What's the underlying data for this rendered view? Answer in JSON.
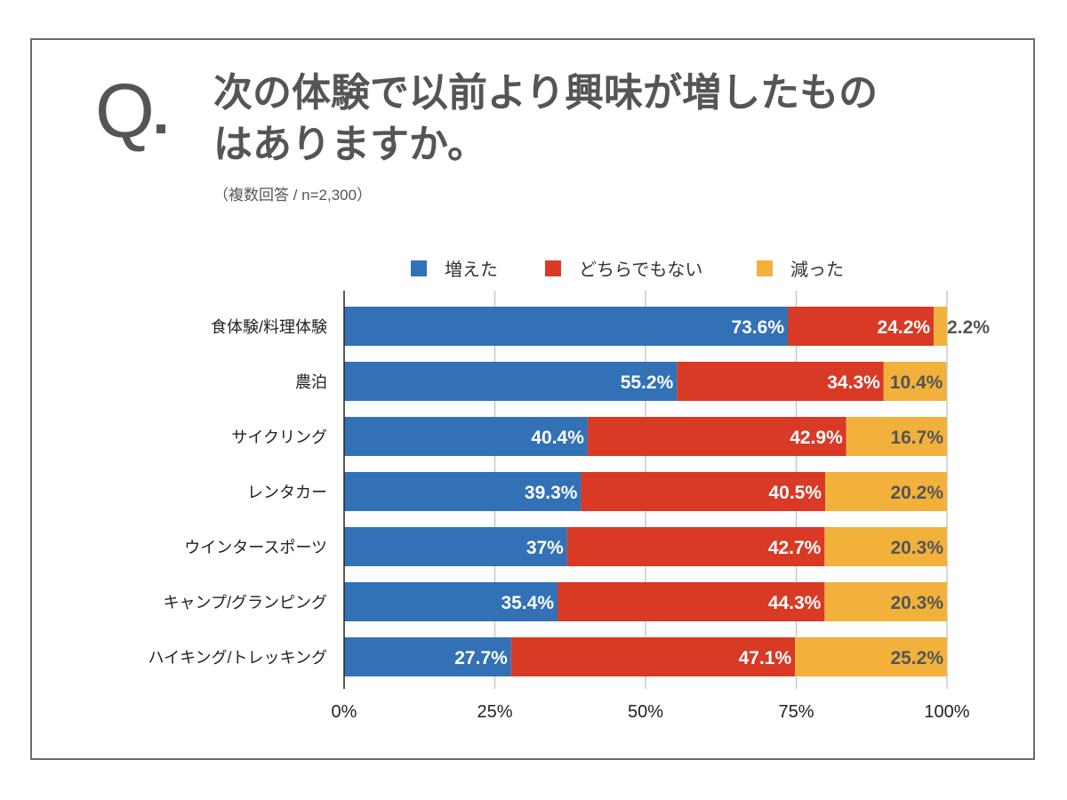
{
  "header": {
    "q_mark": "Q",
    "title": "次の体験で以前より興味が増したものはありますか。",
    "subtitle": "（複数回答 / n=2,300）"
  },
  "colors": {
    "increased": "#3271b6",
    "neutral": "#d83a25",
    "decreased": "#f2b13b",
    "label_light": "#ffffff",
    "label_dark": "#555555",
    "frame": "#6b6b6b"
  },
  "chart_data": {
    "type": "bar",
    "orientation": "horizontal",
    "stacked": true,
    "title": "次の体験で以前より興味が増したものはありますか。",
    "subtitle": "（複数回答 / n=2,300）",
    "categories": [
      "食体験/料理体験",
      "農泊",
      "サイクリング",
      "レンタカー",
      "ウインタースポーツ",
      "キャンプ/グランピング",
      "ハイキング/トレッキング"
    ],
    "series": [
      {
        "name": "増えた",
        "values": [
          73.6,
          55.2,
          40.4,
          39.3,
          37,
          35.4,
          27.7
        ],
        "labels": [
          "73.6%",
          "55.2%",
          "40.4%",
          "39.3%",
          "37%",
          "35.4%",
          "27.7%"
        ]
      },
      {
        "name": "どちらでもない",
        "values": [
          24.2,
          34.3,
          42.9,
          40.5,
          42.7,
          44.3,
          47.1
        ],
        "labels": [
          "24.2%",
          "34.3%",
          "42.9%",
          "40.5%",
          "42.7%",
          "44.3%",
          "47.1%"
        ]
      },
      {
        "name": "減った",
        "values": [
          2.2,
          10.4,
          16.7,
          20.2,
          20.3,
          20.3,
          25.2
        ],
        "labels": [
          "2.2%",
          "10.4%",
          "16.7%",
          "20.2%",
          "20.3%",
          "20.3%",
          "25.2%"
        ]
      }
    ],
    "xlabel": "",
    "ylabel": "",
    "xlim": [
      0,
      100
    ],
    "x_ticks": [
      "0%",
      "25%",
      "50%",
      "75%",
      "100%"
    ],
    "x_tick_values": [
      0,
      25,
      50,
      75,
      100
    ],
    "grid": true,
    "legend_position": "top"
  }
}
